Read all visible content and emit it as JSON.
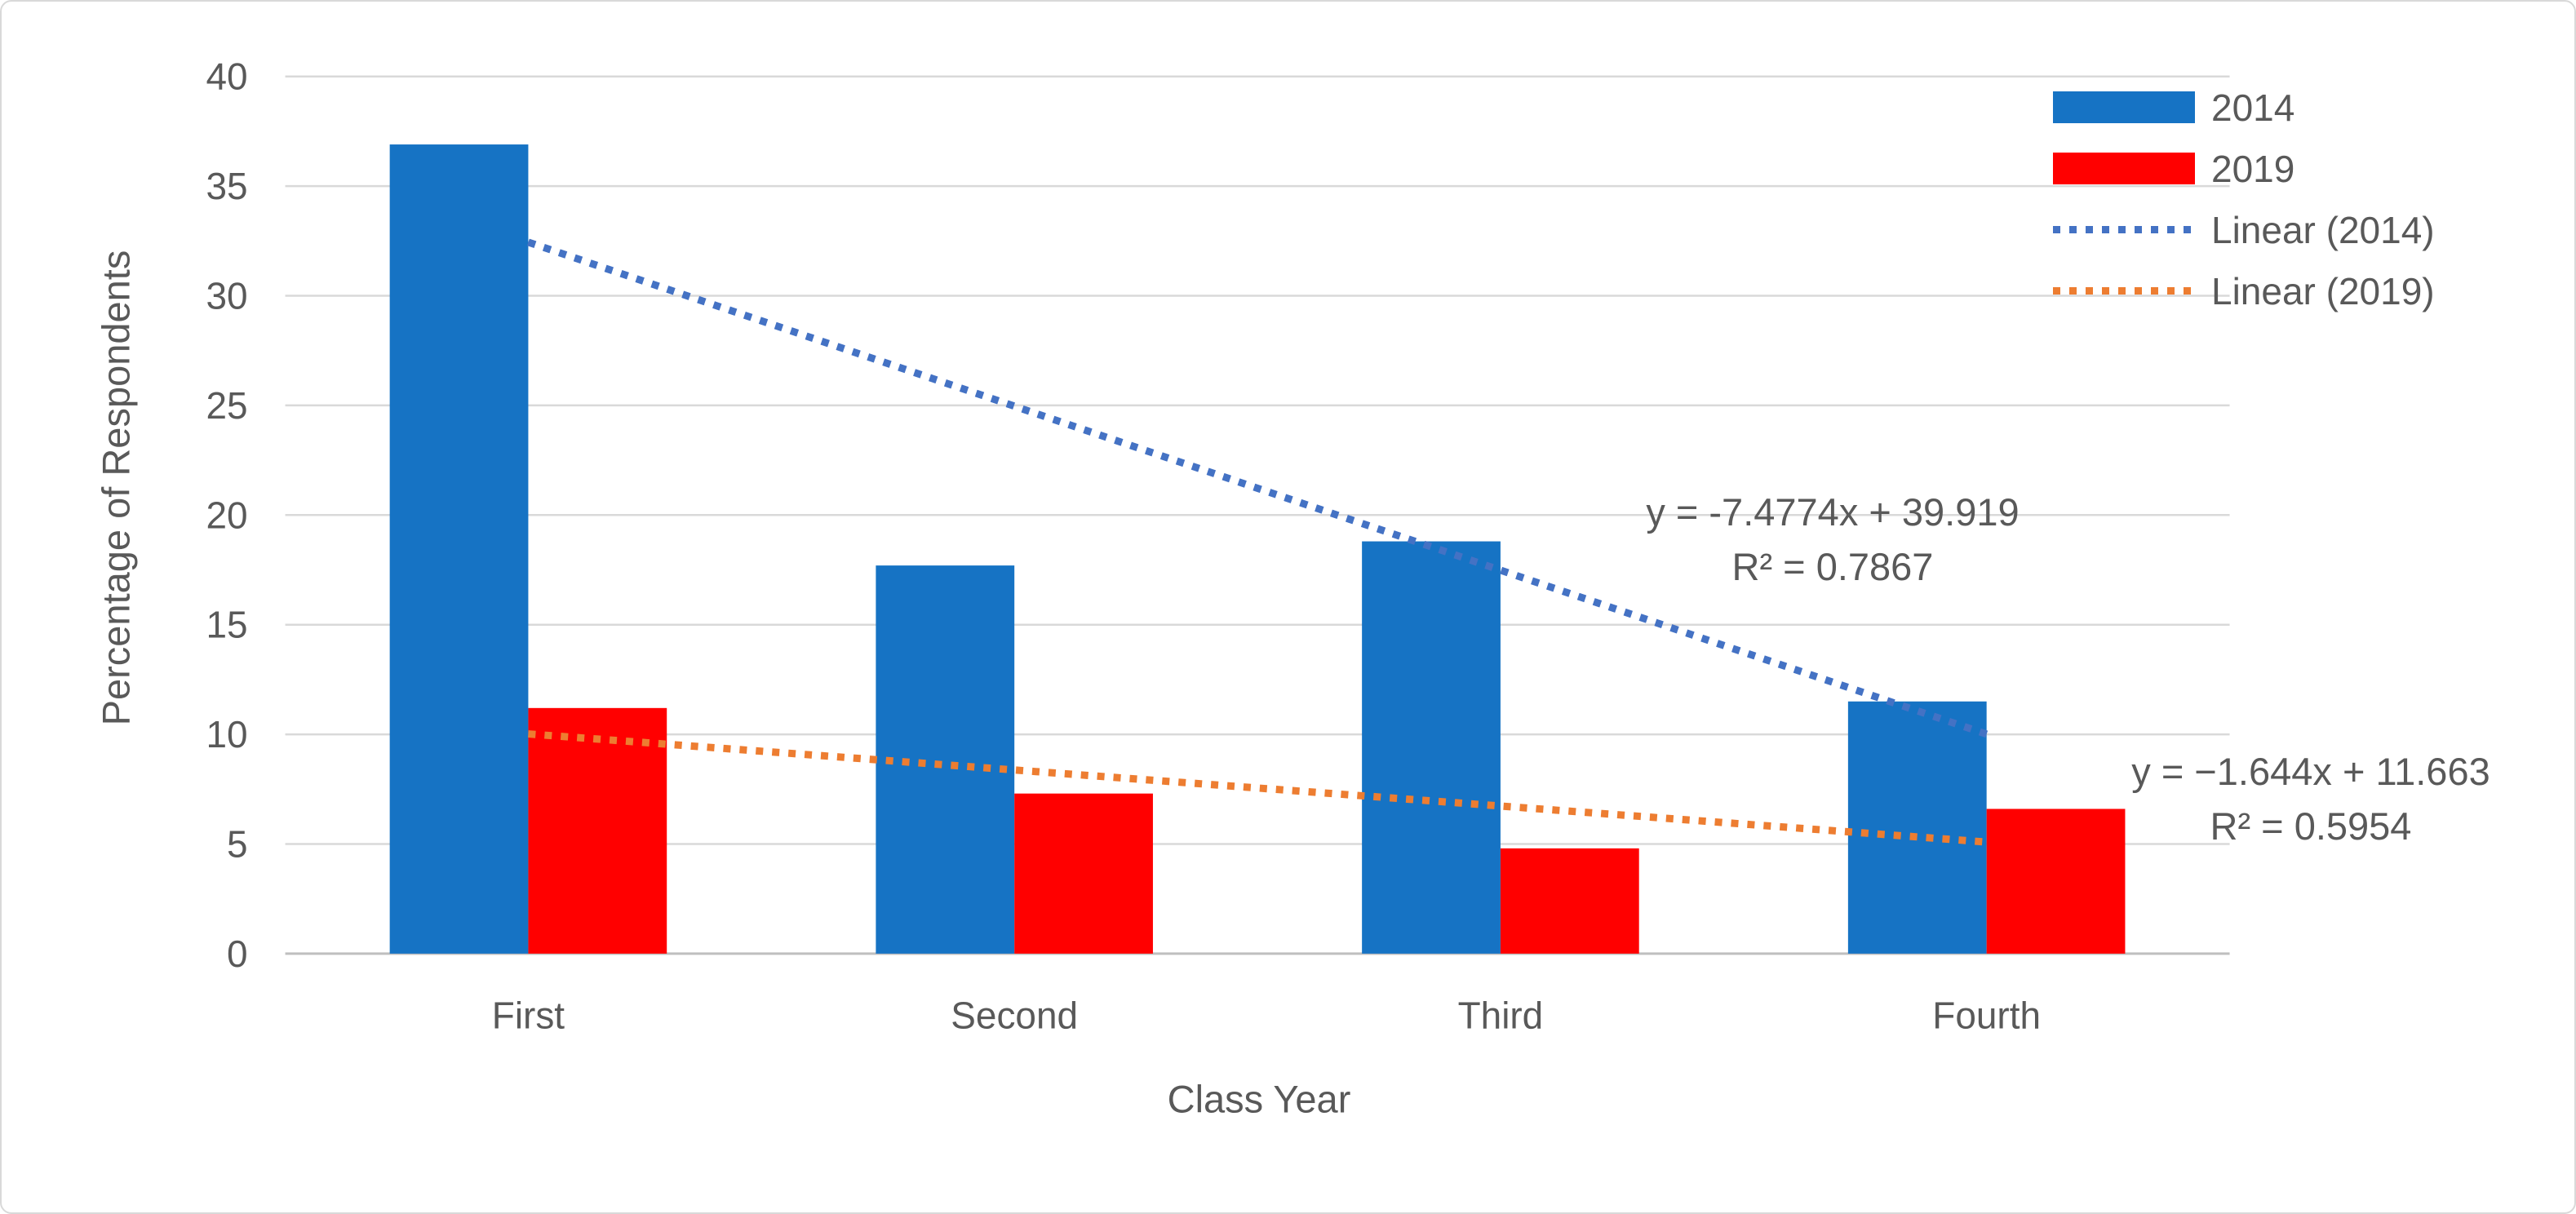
{
  "chart_data": {
    "type": "bar",
    "title": "",
    "categories": [
      "First",
      "Second",
      "Third",
      "Fourth"
    ],
    "series": [
      {
        "name": "2014",
        "color": "#1673C4",
        "values": [
          36.9,
          17.7,
          18.8,
          11.5
        ]
      },
      {
        "name": "2019",
        "color": "#FF0000",
        "values": [
          11.2,
          7.3,
          4.8,
          6.6
        ]
      }
    ],
    "trendlines": [
      {
        "name": "Linear (2014)",
        "color": "#4472C4",
        "slope": -7.4774,
        "intercept": 39.919,
        "equation": "y = -7.4774x + 39.919",
        "r_squared": "R² = 0.7867"
      },
      {
        "name": "Linear (2019)",
        "color": "#ED7D31",
        "slope": -1.644,
        "intercept": 11.663,
        "equation": "y = −1.644x + 11.663",
        "r_squared": "R² = 0.5954"
      }
    ],
    "xlabel": "Class Year",
    "ylabel": "Percentage of Respondents",
    "ylim": [
      0,
      40
    ],
    "yticks": [
      0,
      5,
      10,
      15,
      20,
      25,
      30,
      35,
      40
    ],
    "grid": true,
    "legend_position": "top-right",
    "colors": {
      "gridline": "#D9D9D9",
      "axis_line": "#BFBFBF",
      "text": "#595959",
      "chart_border": "#D9D9D9",
      "background": "#FFFFFF"
    }
  }
}
